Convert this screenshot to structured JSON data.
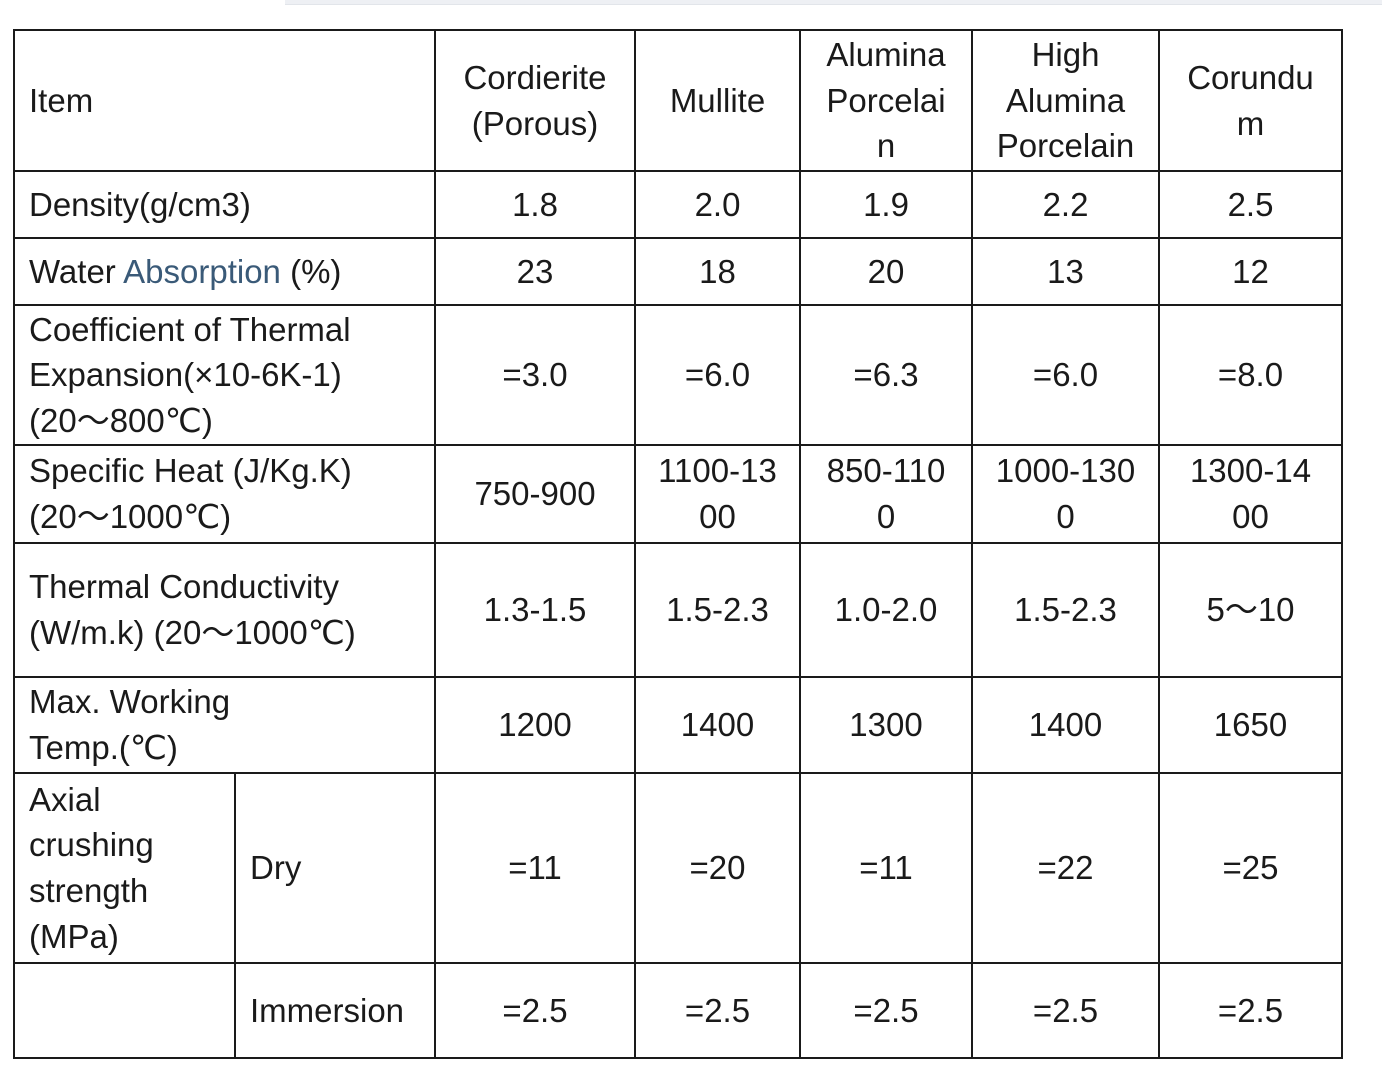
{
  "table": {
    "header": {
      "item": "Item",
      "materials": [
        "Cordierite\n(Porous)",
        "Mullite",
        "Alumina\nPorcelai\nn",
        "High\nAlumina\nPorcelain",
        "Corundu\nm"
      ]
    },
    "rows": [
      {
        "label": "Density(g/cm3)",
        "values": [
          "1.8",
          "2.0",
          "1.9",
          "2.2",
          "2.5"
        ]
      },
      {
        "label_prefix": "Water ",
        "label_highlight": "Absorption",
        "label_suffix": " (%)",
        "values": [
          "23",
          "18",
          "20",
          "13",
          "12"
        ]
      },
      {
        "label": "Coefficient of Thermal\nExpansion(×10-6K-1)\n(20～800℃)",
        "values": [
          "=3.0",
          "=6.0",
          "=6.3",
          "=6.0",
          "=8.0"
        ]
      },
      {
        "label": "Specific Heat (J/Kg.K)\n(20～1000℃)",
        "values": [
          "750-900",
          "1100-13\n00",
          "850-110\n0",
          "1000-130\n0",
          "1300-14\n00"
        ]
      },
      {
        "label": "Thermal Conductivity\n(W/m.k) (20～1000℃)",
        "values": [
          "1.3-1.5",
          "1.5-2.3",
          "1.0-2.0",
          "1.5-2.3",
          "5～10"
        ]
      },
      {
        "label": "Max. Working\nTemp.(℃)",
        "values": [
          "1200",
          "1400",
          "1300",
          "1400",
          "1650"
        ]
      }
    ],
    "crushing": {
      "label": "Axial\ncrushing\nstrength\n(MPa)",
      "dry": {
        "sublabel": "Dry",
        "values": [
          "=11",
          "=20",
          "=11",
          "=22",
          "=25"
        ]
      },
      "immersion": {
        "sublabel": "Immersion",
        "values": [
          "=2.5",
          "=2.5",
          "=2.5",
          "=2.5",
          "=2.5"
        ]
      }
    }
  },
  "colors": {
    "border": "#1a1a1a",
    "text": "#1a1a1a",
    "highlight_text": "#3a5a78"
  }
}
